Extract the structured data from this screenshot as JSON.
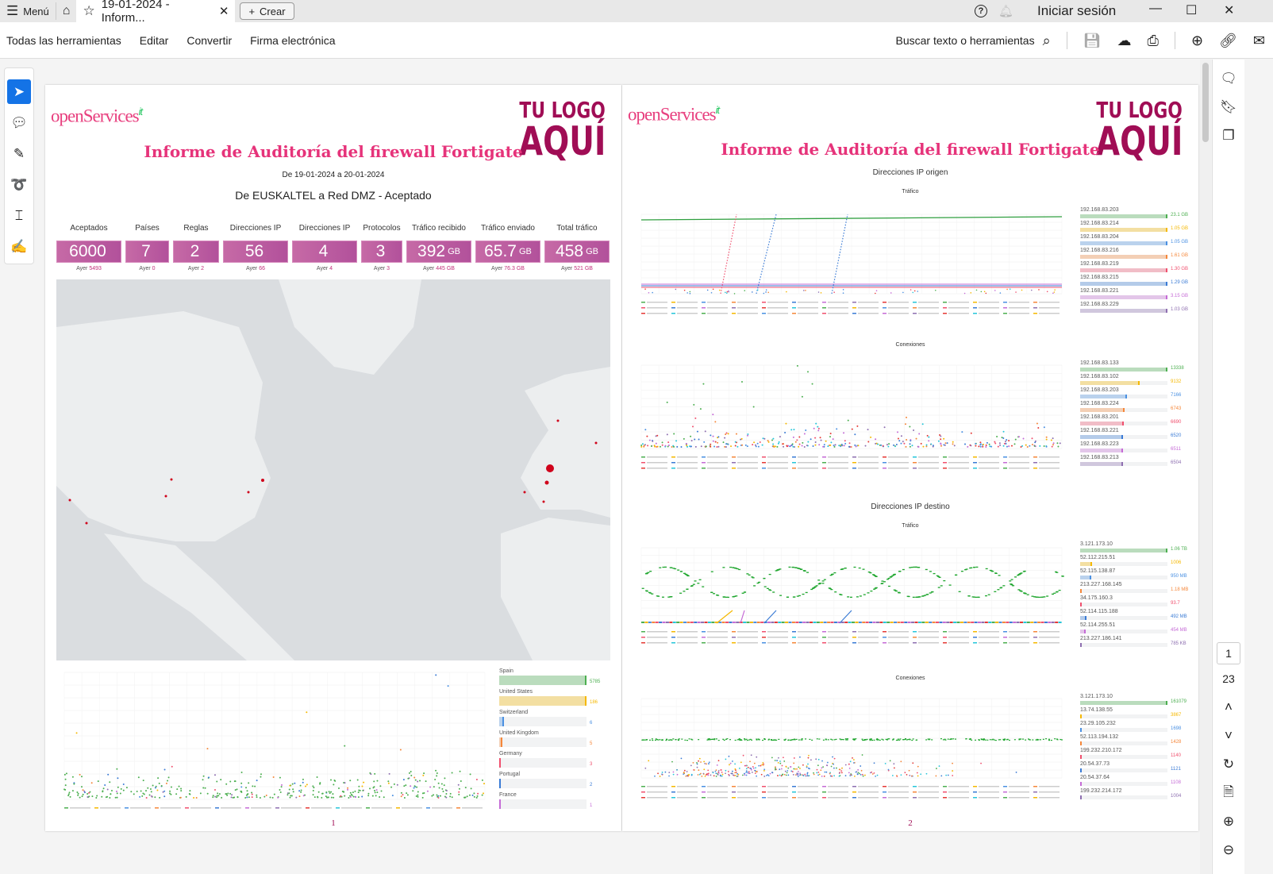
{
  "app": {
    "menu": "Menú",
    "tab_title": "19-01-2024 - Inform...",
    "create": "Crear",
    "signin": "Iniciar sesión"
  },
  "toolbar": {
    "items": [
      "Todas las herramientas",
      "Editar",
      "Convertir",
      "Firma electrónica"
    ],
    "search": "Buscar texto o herramientas"
  },
  "pagenav": {
    "current": "1",
    "total": "23"
  },
  "report": {
    "brand": "openServices",
    "brand_sup": "it",
    "logo_line1": "TU LOGO",
    "logo_line2": "AQUÍ",
    "title": "Informe de Auditoría del firewall Fortigate",
    "range": "De 19-01-2024 a 20-01-2024",
    "subtitle": "De EUSKALTEL a Red DMZ - Aceptado"
  },
  "kpis": [
    {
      "label": "Aceptados",
      "value": "6000",
      "unit": "",
      "yesterday_label": "Ayer",
      "yesterday": "5493"
    },
    {
      "label": "Países",
      "value": "7",
      "unit": "",
      "yesterday_label": "Ayer",
      "yesterday": "0"
    },
    {
      "label": "Reglas",
      "value": "2",
      "unit": "",
      "yesterday_label": "Ayer",
      "yesterday": "2"
    },
    {
      "label": "Direcciones IP",
      "value": "56",
      "unit": "",
      "yesterday_label": "Ayer",
      "yesterday": "66"
    },
    {
      "label": "Direcciones IP",
      "value": "4",
      "unit": "",
      "yesterday_label": "Ayer",
      "yesterday": "4"
    },
    {
      "label": "Protocolos",
      "value": "3",
      "unit": "",
      "yesterday_label": "Ayer",
      "yesterday": "3"
    },
    {
      "label": "Tráfico recibido",
      "value": "392",
      "unit": "GB",
      "yesterday_label": "Ayer",
      "yesterday": "445 GB"
    },
    {
      "label": "Tráfico enviado",
      "value": "65.7",
      "unit": "GB",
      "yesterday_label": "Ayer",
      "yesterday": "76.3 GB"
    },
    {
      "label": "Total tráfico",
      "value": "458",
      "unit": "GB",
      "yesterday_label": "Ayer",
      "yesterday": "521 GB"
    }
  ],
  "countries": [
    {
      "label": "Spain",
      "value": "5785",
      "frac": 1,
      "color": "#4caf50"
    },
    {
      "label": "United States",
      "value": "186",
      "frac": 1,
      "color": "#f5b800"
    },
    {
      "label": "Switzerland",
      "value": "6",
      "frac": 0.05,
      "color": "#4a90e2"
    },
    {
      "label": "United Kingdom",
      "value": "5",
      "frac": 0.04,
      "color": "#f5873a"
    },
    {
      "label": "Germany",
      "value": "3",
      "frac": 0.02,
      "color": "#f0506e"
    },
    {
      "label": "Portugal",
      "value": "2",
      "frac": 0.01,
      "color": "#3a7bd5"
    },
    {
      "label": "France",
      "value": "1",
      "frac": 0.005,
      "color": "#c56bd6"
    }
  ],
  "page2": {
    "src_heading": "Direcciones IP origen",
    "dst_heading": "Direcciones IP destino",
    "traffic": "Tráfico",
    "connections": "Conexiones",
    "src_traffic": [
      {
        "label": "192.168.83.203",
        "value": "23.1 GB",
        "frac": 1,
        "color": "#4caf50"
      },
      {
        "label": "192.168.83.214",
        "value": "1.05 GB",
        "frac": 1,
        "color": "#f5b800"
      },
      {
        "label": "192.168.83.204",
        "value": "1.05 GB",
        "frac": 1,
        "color": "#4a90e2"
      },
      {
        "label": "192.168.83.216",
        "value": "1.61 GB",
        "frac": 1,
        "color": "#f5873a"
      },
      {
        "label": "192.168.83.219",
        "value": "1.30 GB",
        "frac": 1,
        "color": "#f0506e"
      },
      {
        "label": "192.168.83.215",
        "value": "1.29 GB",
        "frac": 1,
        "color": "#3a7bd5"
      },
      {
        "label": "192.168.83.221",
        "value": "3.15 GB",
        "frac": 1,
        "color": "#c56bd6"
      },
      {
        "label": "192.168.83.229",
        "value": "1.03 GB",
        "frac": 1,
        "color": "#8e6fb0"
      }
    ],
    "src_conn": [
      {
        "label": "192.168.83.133",
        "value": "13338",
        "frac": 1,
        "color": "#4caf50"
      },
      {
        "label": "192.168.83.102",
        "value": "9132",
        "frac": 0.68,
        "color": "#f5b800"
      },
      {
        "label": "192.168.83.203",
        "value": "7166",
        "frac": 0.54,
        "color": "#4a90e2"
      },
      {
        "label": "192.168.83.224",
        "value": "6743",
        "frac": 0.51,
        "color": "#f5873a"
      },
      {
        "label": "192.168.83.201",
        "value": "6690",
        "frac": 0.5,
        "color": "#f0506e"
      },
      {
        "label": "192.168.83.221",
        "value": "6520",
        "frac": 0.49,
        "color": "#3a7bd5"
      },
      {
        "label": "192.168.83.223",
        "value": "6511",
        "frac": 0.49,
        "color": "#c56bd6"
      },
      {
        "label": "192.168.83.213",
        "value": "6504",
        "frac": 0.49,
        "color": "#8e6fb0"
      }
    ],
    "dst_traffic": [
      {
        "label": "3.121.173.10",
        "value": "1.06 TB",
        "frac": 1,
        "color": "#4caf50"
      },
      {
        "label": "52.112.215.51",
        "value": "1006",
        "frac": 0.14,
        "color": "#f5b800"
      },
      {
        "label": "52.115.138.87",
        "value": "950 MB",
        "frac": 0.13,
        "color": "#4a90e2"
      },
      {
        "label": "213.227.168.145",
        "value": "1.18 MB",
        "frac": 0.01,
        "color": "#f5873a"
      },
      {
        "label": "34.175.160.3",
        "value": "93.7",
        "frac": 0.01,
        "color": "#f0506e"
      },
      {
        "label": "52.114.115.188",
        "value": "492 MB",
        "frac": 0.07,
        "color": "#3a7bd5"
      },
      {
        "label": "52.114.255.51",
        "value": "454 MB",
        "frac": 0.06,
        "color": "#c56bd6"
      },
      {
        "label": "213.227.186.141",
        "value": "785 KB",
        "frac": 0.01,
        "color": "#8e6fb0"
      }
    ],
    "dst_conn": [
      {
        "label": "3.121.173.10",
        "value": "161079",
        "frac": 1,
        "color": "#4caf50"
      },
      {
        "label": "13.74.138.55",
        "value": "3867",
        "frac": 0.02,
        "color": "#f5b800"
      },
      {
        "label": "23.29.105.232",
        "value": "1698",
        "frac": 0.01,
        "color": "#4a90e2"
      },
      {
        "label": "52.113.194.132",
        "value": "1428",
        "frac": 0.01,
        "color": "#f5873a"
      },
      {
        "label": "199.232.210.172",
        "value": "1140",
        "frac": 0.01,
        "color": "#f0506e"
      },
      {
        "label": "20.54.37.73",
        "value": "1121",
        "frac": 0.01,
        "color": "#3a7bd5"
      },
      {
        "label": "20.54.37.64",
        "value": "1108",
        "frac": 0.01,
        "color": "#c56bd6"
      },
      {
        "label": "199.232.214.172",
        "value": "1004",
        "frac": 0.01,
        "color": "#8e6fb0"
      }
    ]
  },
  "page_numbers": [
    "1",
    "2"
  ]
}
